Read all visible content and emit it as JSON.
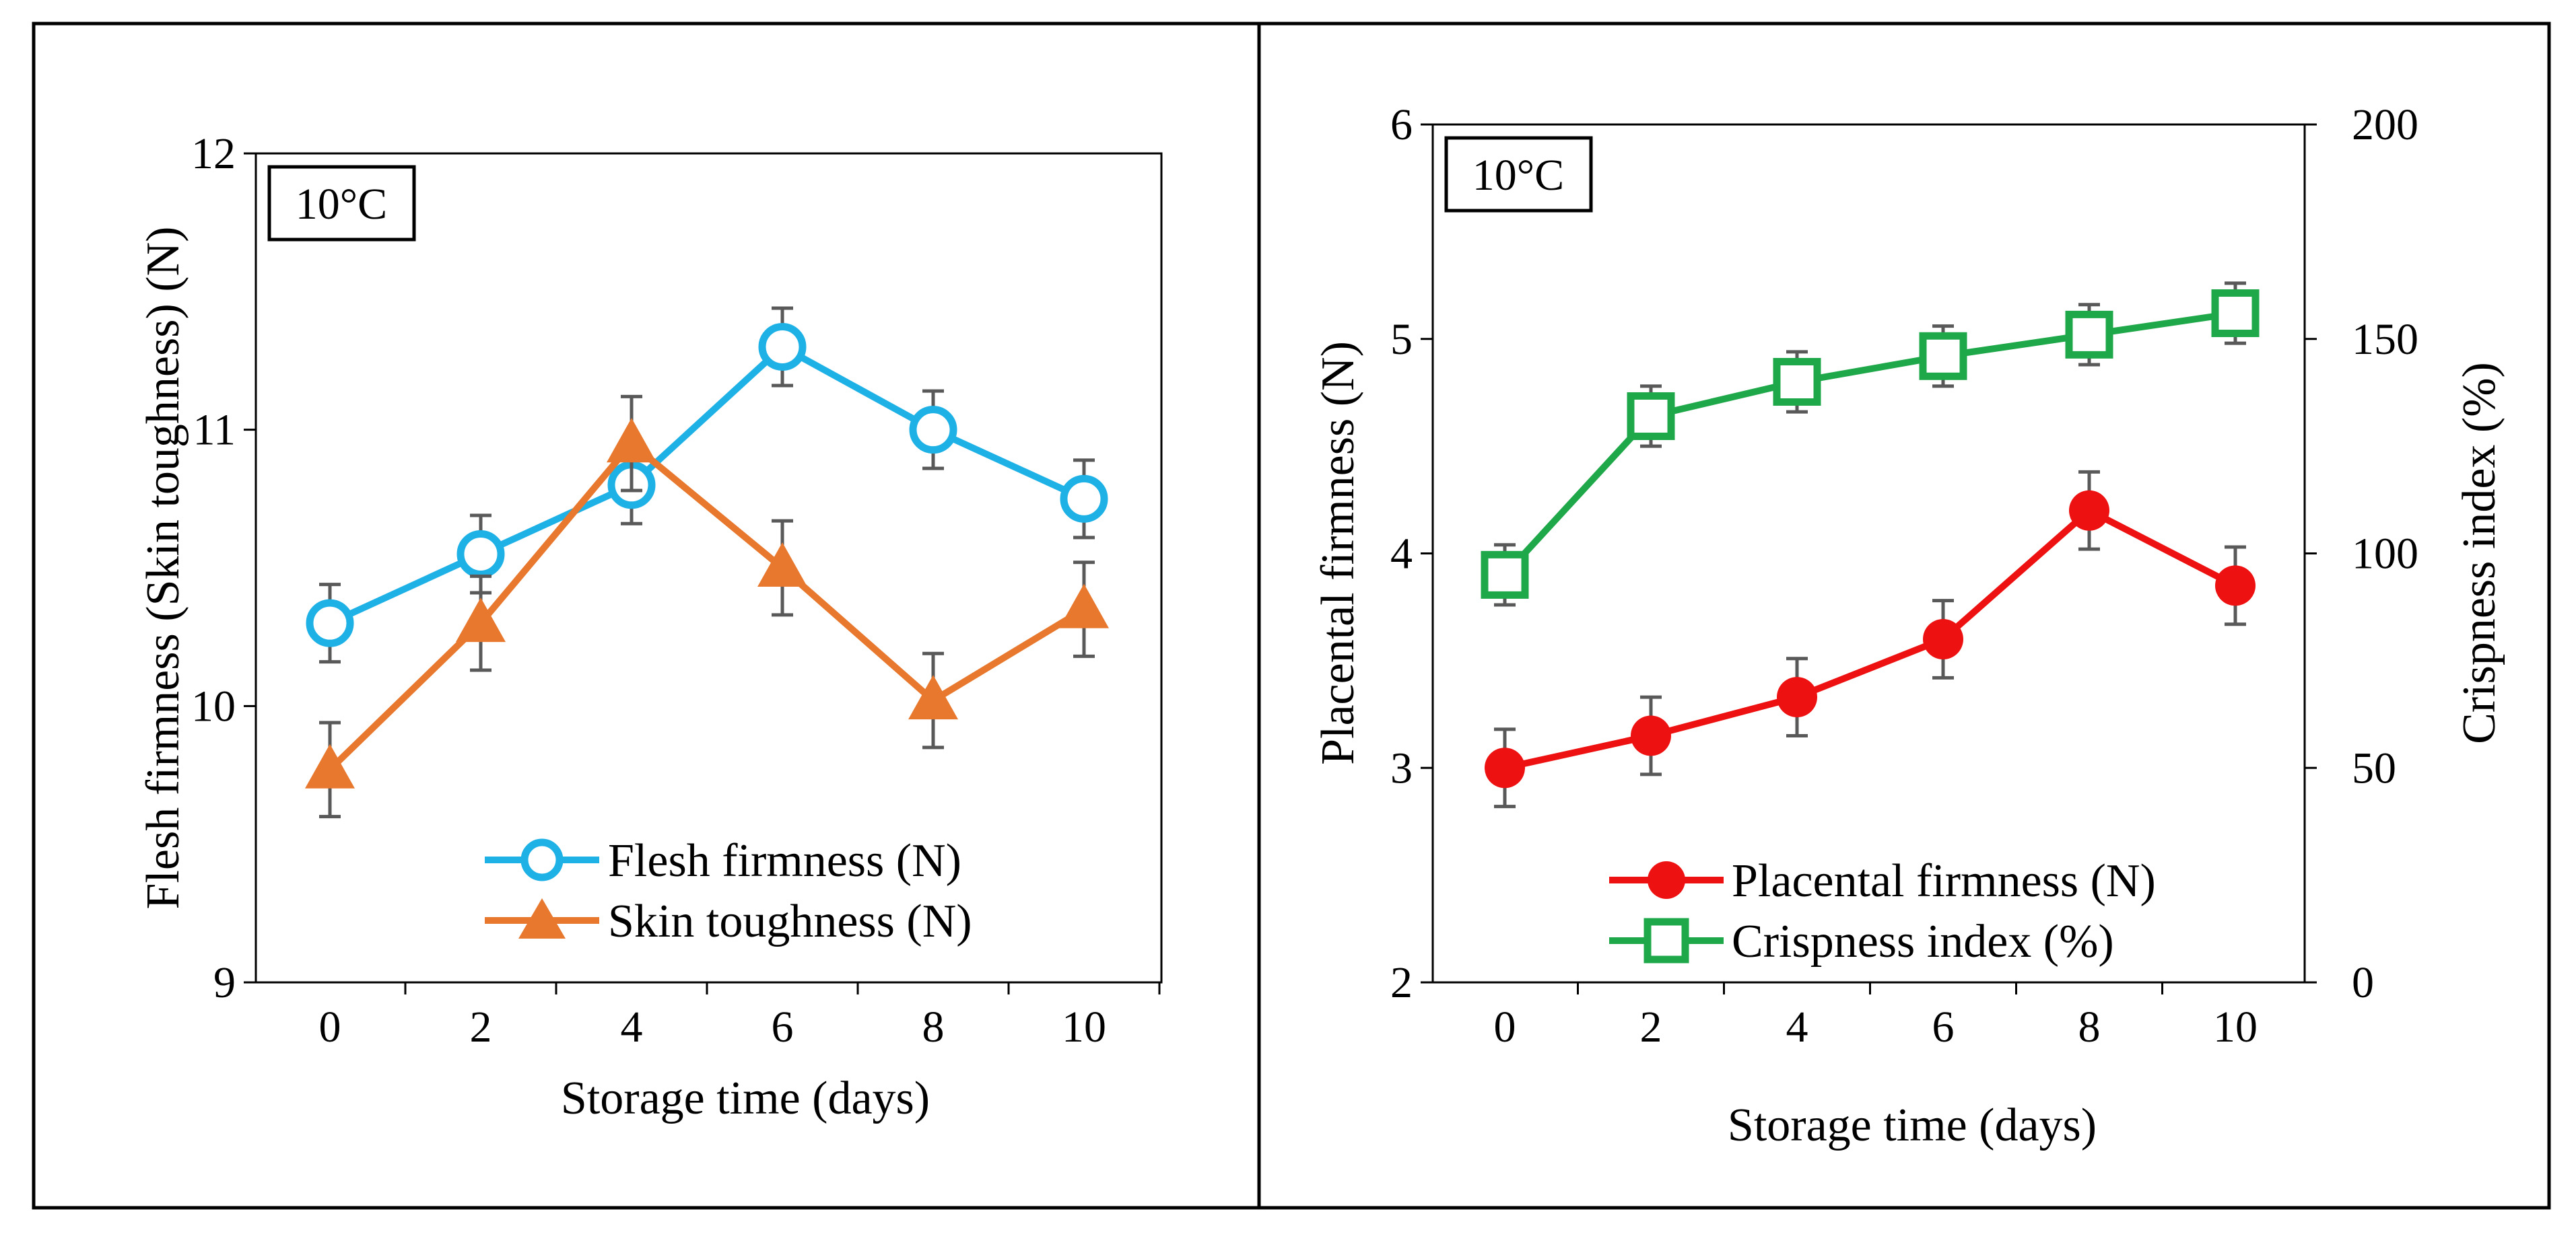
{
  "colors": {
    "flesh": "#1EB1E6",
    "skin": "#E8782E",
    "placental": "#EE1111",
    "crisp": "#1EA84A",
    "errorbar": "#595959"
  },
  "chart_data": [
    {
      "type": "line",
      "badge": "10°C",
      "xlabel": "Storage time (days)",
      "ylabel": "Flesh firmness (Skin toughness) (N)",
      "x": [
        0,
        2,
        4,
        6,
        8,
        10
      ],
      "xticks": [
        "0",
        "2",
        "4",
        "6",
        "8",
        "10"
      ],
      "yticks": [
        "9",
        "10",
        "11",
        "12"
      ],
      "ylim": [
        9,
        12
      ],
      "legend_position": "bottom-right",
      "series": [
        {
          "name": "Flesh firmness (N)",
          "marker": "open-circle",
          "values": [
            10.3,
            10.55,
            10.8,
            11.3,
            11.0,
            10.75
          ],
          "errors": [
            0.14,
            0.14,
            0.14,
            0.14,
            0.14,
            0.14
          ]
        },
        {
          "name": "Skin toughness (N)",
          "marker": "triangle",
          "values": [
            9.77,
            10.3,
            10.95,
            10.5,
            10.02,
            10.35
          ],
          "errors": [
            0.17,
            0.17,
            0.17,
            0.17,
            0.17,
            0.17
          ]
        }
      ]
    },
    {
      "type": "line",
      "badge": "10°C",
      "xlabel": "Storage time (days)",
      "ylabel": "Placental firmness (N)",
      "y2label": "Crispness index (%)",
      "x": [
        0,
        2,
        4,
        6,
        8,
        10
      ],
      "xticks": [
        "0",
        "2",
        "4",
        "6",
        "8",
        "10"
      ],
      "yticks": [
        "2",
        "3",
        "4",
        "5",
        "6"
      ],
      "ylim": [
        2,
        6
      ],
      "y2ticks": [
        "0",
        "50",
        "100",
        "150",
        "200"
      ],
      "y2lim": [
        0,
        200
      ],
      "legend_position": "bottom-right",
      "series": [
        {
          "name": "Placental firmness (N)",
          "axis": "left",
          "marker": "filled-circle",
          "values": [
            3.0,
            3.15,
            3.33,
            3.6,
            4.2,
            3.85
          ],
          "errors": [
            0.18,
            0.18,
            0.18,
            0.18,
            0.18,
            0.18
          ]
        },
        {
          "name": "Crispness index (%)",
          "axis": "right",
          "marker": "open-square",
          "values": [
            95,
            132,
            140,
            146,
            151,
            156
          ],
          "errors": [
            7,
            7,
            7,
            7,
            7,
            7
          ]
        }
      ]
    }
  ]
}
